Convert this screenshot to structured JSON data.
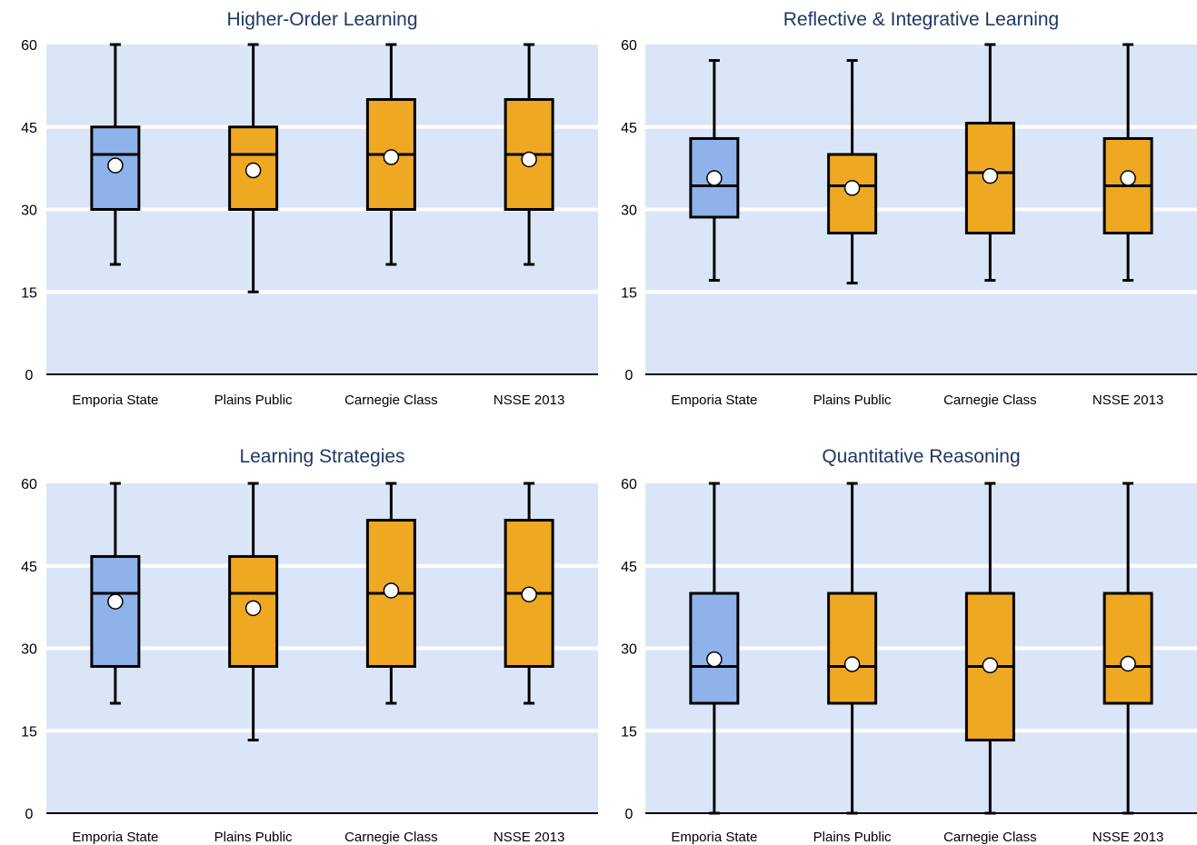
{
  "colors": {
    "title": "#1f3864",
    "band": "#dae6f8",
    "gridline": "#ffffff",
    "box_primary": "#8eb2e9",
    "box_compare": "#efa822",
    "stroke": "#000000",
    "mean_marker": "#ffffff"
  },
  "chart_data": [
    {
      "type": "boxplot",
      "title": "Higher-Order Learning",
      "categories": [
        "Emporia State",
        "Plains Public",
        "Carnegie Class",
        "NSSE 2013"
      ],
      "yticks": [
        0,
        15,
        30,
        45,
        60
      ],
      "ylim": [
        0,
        60
      ],
      "grid": true,
      "boxes": [
        {
          "whisker_low": 20,
          "q1": 30,
          "median": 40,
          "q3": 45,
          "whisker_high": 60,
          "mean": 38.0,
          "color": "#8eb2e9"
        },
        {
          "whisker_low": 15,
          "q1": 30,
          "median": 40,
          "q3": 45,
          "whisker_high": 60,
          "mean": 37.1,
          "color": "#efa822"
        },
        {
          "whisker_low": 20,
          "q1": 30,
          "median": 40,
          "q3": 50,
          "whisker_high": 60,
          "mean": 39.5,
          "color": "#efa822"
        },
        {
          "whisker_low": 20,
          "q1": 30,
          "median": 40,
          "q3": 50,
          "whisker_high": 60,
          "mean": 39.1,
          "color": "#efa822"
        }
      ]
    },
    {
      "type": "boxplot",
      "title": "Reflective & Integrative Learning",
      "categories": [
        "Emporia State",
        "Plains Public",
        "Carnegie Class",
        "NSSE 2013"
      ],
      "yticks": [
        0,
        15,
        30,
        45,
        60
      ],
      "ylim": [
        0,
        60
      ],
      "grid": true,
      "boxes": [
        {
          "whisker_low": 17.1,
          "q1": 28.6,
          "median": 34.3,
          "q3": 42.9,
          "whisker_high": 57.1,
          "mean": 35.7,
          "color": "#8eb2e9"
        },
        {
          "whisker_low": 16.6,
          "q1": 25.7,
          "median": 34.3,
          "q3": 40.0,
          "whisker_high": 57.1,
          "mean": 33.9,
          "color": "#efa822"
        },
        {
          "whisker_low": 17.1,
          "q1": 25.7,
          "median": 36.7,
          "q3": 45.7,
          "whisker_high": 60,
          "mean": 36.1,
          "color": "#efa822"
        },
        {
          "whisker_low": 17.1,
          "q1": 25.7,
          "median": 34.3,
          "q3": 42.9,
          "whisker_high": 60,
          "mean": 35.7,
          "color": "#efa822"
        }
      ]
    },
    {
      "type": "boxplot",
      "title": "Learning Strategies",
      "categories": [
        "Emporia State",
        "Plains Public",
        "Carnegie Class",
        "NSSE 2013"
      ],
      "yticks": [
        0,
        15,
        30,
        45,
        60
      ],
      "ylim": [
        0,
        60
      ],
      "grid": true,
      "boxes": [
        {
          "whisker_low": 20,
          "q1": 26.7,
          "median": 40,
          "q3": 46.7,
          "whisker_high": 60,
          "mean": 38.5,
          "color": "#8eb2e9"
        },
        {
          "whisker_low": 13.3,
          "q1": 26.7,
          "median": 40,
          "q3": 46.7,
          "whisker_high": 60,
          "mean": 37.3,
          "color": "#efa822"
        },
        {
          "whisker_low": 20,
          "q1": 26.7,
          "median": 40,
          "q3": 53.3,
          "whisker_high": 60,
          "mean": 40.5,
          "color": "#efa822"
        },
        {
          "whisker_low": 20,
          "q1": 26.7,
          "median": 40,
          "q3": 53.3,
          "whisker_high": 60,
          "mean": 39.8,
          "color": "#efa822"
        }
      ]
    },
    {
      "type": "boxplot",
      "title": "Quantitative Reasoning",
      "categories": [
        "Emporia State",
        "Plains Public",
        "Carnegie Class",
        "NSSE 2013"
      ],
      "yticks": [
        0,
        15,
        30,
        45,
        60
      ],
      "ylim": [
        0,
        60
      ],
      "grid": true,
      "boxes": [
        {
          "whisker_low": 0,
          "q1": 20,
          "median": 26.7,
          "q3": 40,
          "whisker_high": 60,
          "mean": 28.0,
          "color": "#8eb2e9"
        },
        {
          "whisker_low": 0,
          "q1": 20,
          "median": 26.7,
          "q3": 40,
          "whisker_high": 60,
          "mean": 27.1,
          "color": "#efa822"
        },
        {
          "whisker_low": 0,
          "q1": 13.3,
          "median": 26.7,
          "q3": 40,
          "whisker_high": 60,
          "mean": 26.9,
          "color": "#efa822"
        },
        {
          "whisker_low": 0,
          "q1": 20,
          "median": 26.7,
          "q3": 40,
          "whisker_high": 60,
          "mean": 27.2,
          "color": "#efa822"
        }
      ]
    }
  ]
}
